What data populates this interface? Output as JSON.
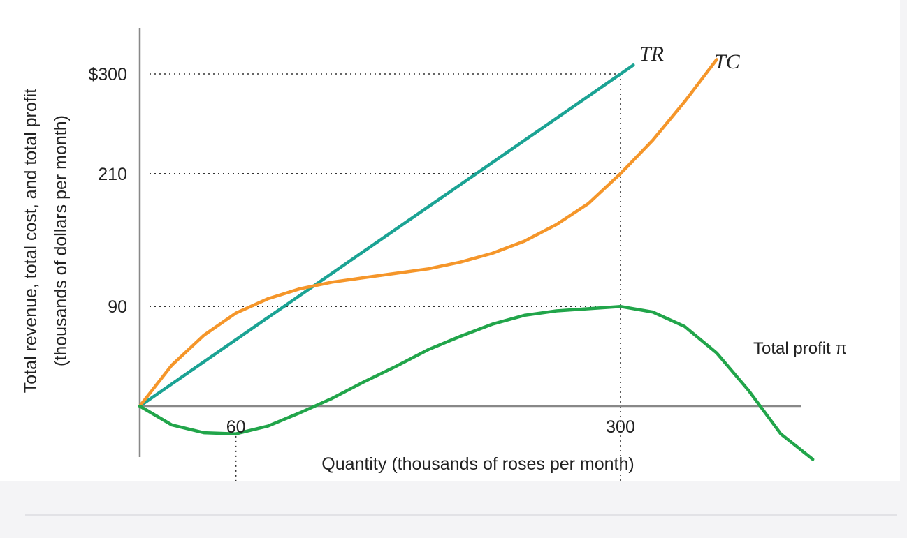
{
  "chart_data": {
    "type": "line",
    "xlabel": "Quantity (thousands of roses per month)",
    "ylabel_lines": [
      "Total revenue, total cost, and total profit",
      "(thousands of dollars per month)"
    ],
    "xlim": [
      0,
      415
    ],
    "ylim": [
      -60,
      375
    ],
    "x_ticks": [
      {
        "value": 60,
        "label": "60"
      },
      {
        "value": 300,
        "label": "300"
      }
    ],
    "y_ticks": [
      {
        "value": 90,
        "label": "90"
      },
      {
        "value": 210,
        "label": "210"
      },
      {
        "value": 300,
        "label": "$300"
      }
    ],
    "reference_lines": {
      "horizontal": [
        90,
        210,
        300
      ],
      "vertical": [
        60,
        300
      ],
      "style": "dotted"
    },
    "series": [
      {
        "name": "TR",
        "color": "#1ba394",
        "x": [
          0,
          100,
          200,
          300,
          308
        ],
        "y": [
          0,
          100,
          200,
          300,
          308
        ]
      },
      {
        "name": "TC",
        "color": "#f5962a",
        "x": [
          0,
          20,
          40,
          60,
          80,
          100,
          120,
          140,
          160,
          180,
          200,
          220,
          240,
          260,
          280,
          300,
          320,
          340,
          360
        ],
        "y": [
          0,
          37,
          64,
          84,
          97,
          106,
          112,
          116,
          120,
          124,
          130,
          138,
          149,
          164,
          183,
          210,
          240,
          275,
          313
        ]
      },
      {
        "name": "Total profit π",
        "color": "#21a54a",
        "x": [
          0,
          20,
          40,
          60,
          80,
          100,
          120,
          140,
          160,
          180,
          200,
          220,
          240,
          260,
          280,
          300,
          320,
          340,
          360,
          380,
          400,
          420
        ],
        "y": [
          0,
          -17,
          -24,
          -25,
          -18,
          -6,
          7,
          22,
          36,
          51,
          63,
          74,
          82,
          86,
          88,
          90,
          85,
          72,
          48,
          14,
          -25,
          -48
        ]
      }
    ]
  }
}
